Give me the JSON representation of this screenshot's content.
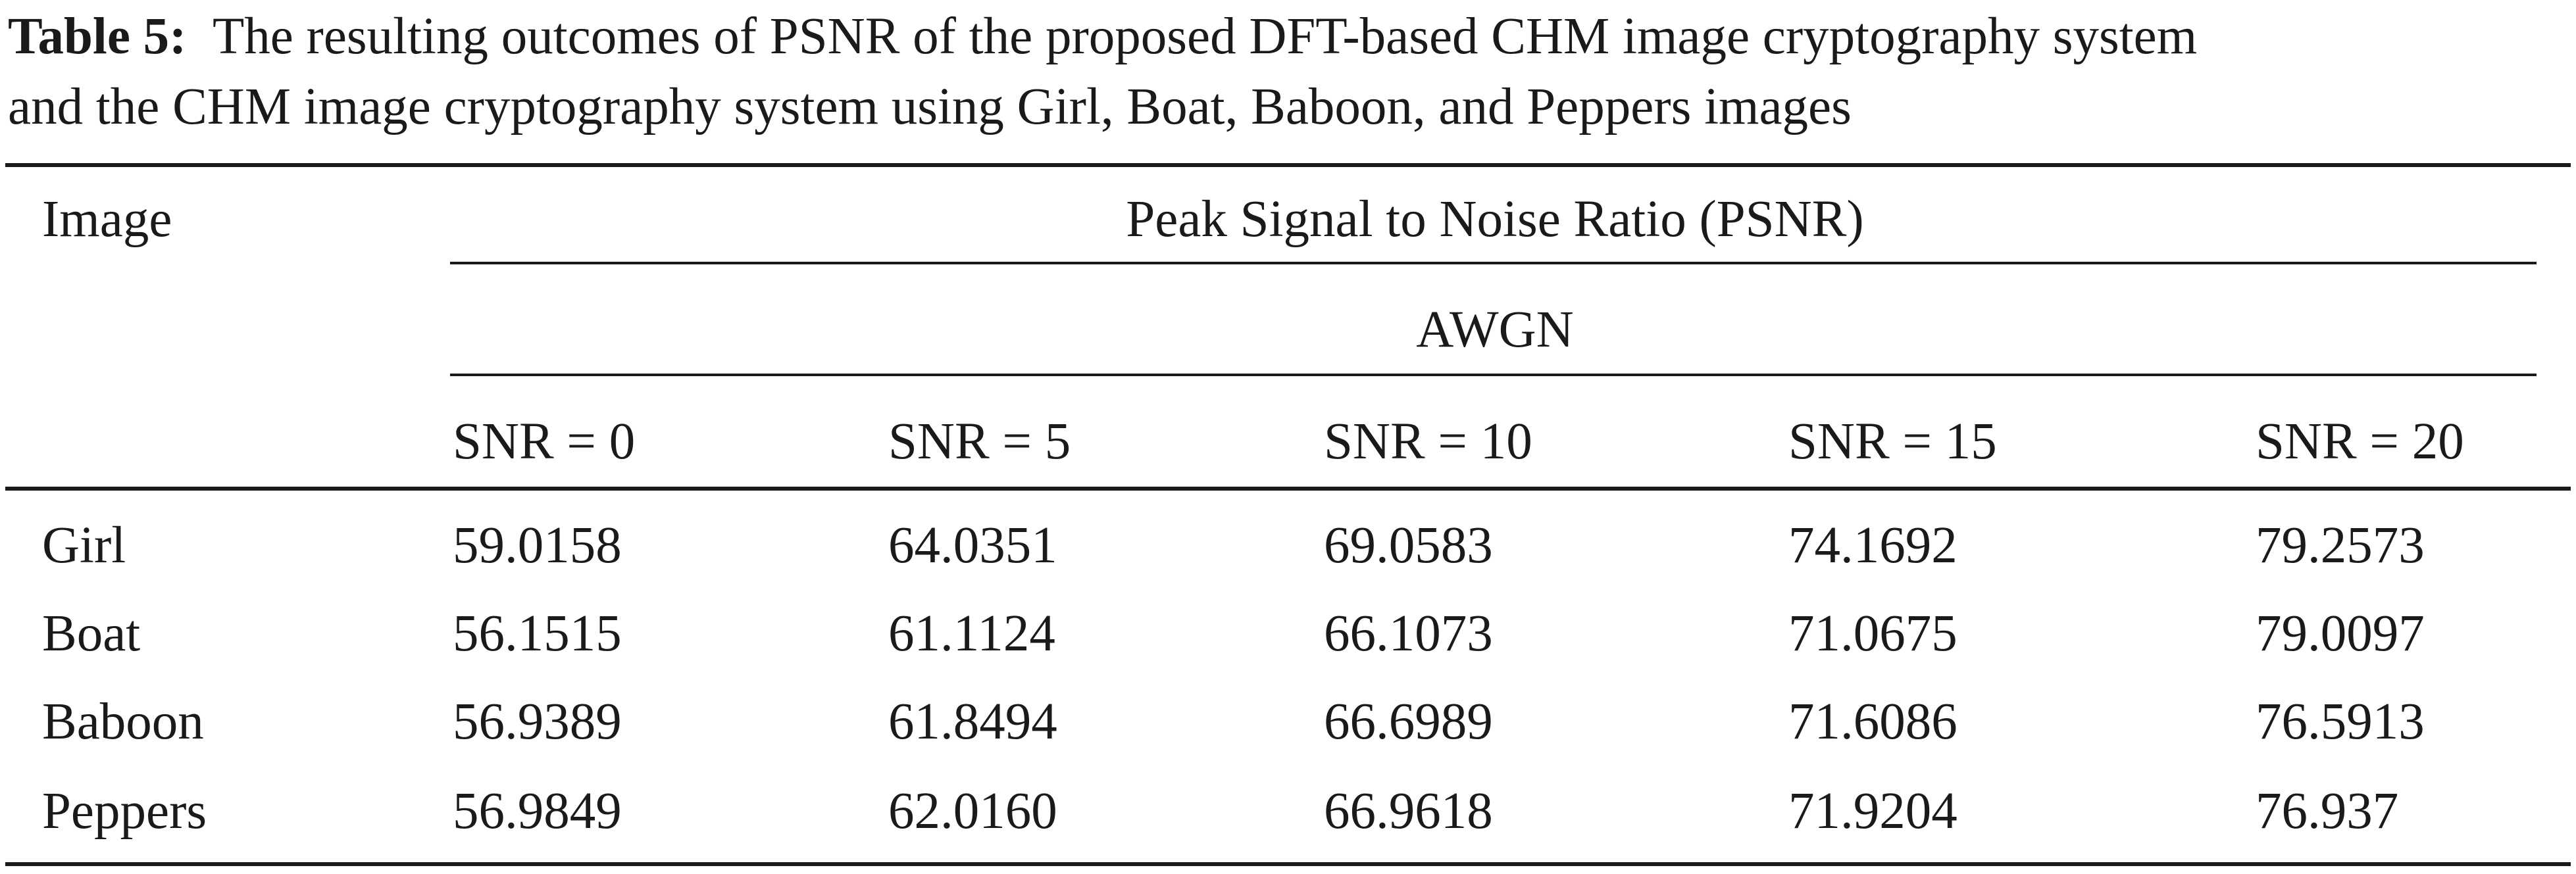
{
  "caption": {
    "label": "Table 5:",
    "line1": "The resulting outcomes of PSNR of the proposed DFT-based CHM image cryptography system",
    "line2": "and the CHM image cryptography system using Girl, Boat, Baboon, and Peppers images"
  },
  "table": {
    "row_header": "Image",
    "group_header": "Peak Signal to Noise Ratio (PSNR)",
    "subgroup_header": "AWGN",
    "columns": [
      "SNR = 0",
      "SNR = 5",
      "SNR = 10",
      "SNR = 15",
      "SNR = 20"
    ],
    "rows": [
      {
        "image": "Girl",
        "values": [
          "59.0158",
          "64.0351",
          "69.0583",
          "74.1692",
          "79.2573"
        ]
      },
      {
        "image": "Boat",
        "values": [
          "56.1515",
          "61.1124",
          "66.1073",
          "71.0675",
          "79.0097"
        ]
      },
      {
        "image": "Baboon",
        "values": [
          "56.9389",
          "61.8494",
          "66.6989",
          "71.6086",
          "76.5913"
        ]
      },
      {
        "image": "Peppers",
        "values": [
          "56.9849",
          "62.0160",
          "66.9618",
          "71.9204",
          "76.937"
        ]
      }
    ]
  }
}
